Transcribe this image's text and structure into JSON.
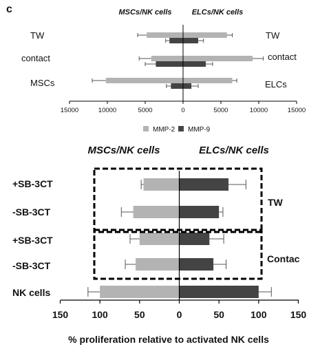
{
  "panel_letter": "c",
  "colors": {
    "light": "#b3b3b3",
    "dark": "#444444",
    "axis": "#000000",
    "error": "#555555"
  },
  "chart_data": [
    {
      "type": "bar",
      "orientation": "horizontal-bilateral",
      "left_heading": "MSCs/NK cells",
      "right_heading": "ELCs/NK cells",
      "categories": [
        {
          "left": "TW",
          "right": "TW"
        },
        {
          "left": "contact",
          "right": "contact"
        },
        {
          "left": "MSCs",
          "right": "ELCs"
        }
      ],
      "series": [
        {
          "name": "MMP-2",
          "left_values": [
            4800,
            4200,
            10200
          ],
          "left_errors": [
            1200,
            1600,
            1800
          ],
          "right_values": [
            5800,
            9200,
            6500
          ],
          "right_errors": [
            700,
            1400,
            600
          ]
        },
        {
          "name": "MMP-9",
          "left_values": [
            1800,
            3600,
            1600
          ],
          "left_errors": [
            500,
            1400,
            600
          ],
          "right_values": [
            2000,
            3000,
            1100
          ],
          "right_errors": [
            700,
            900,
            900
          ]
        }
      ],
      "xlim": [
        -15000,
        15000
      ],
      "xticks": [
        -15000,
        -10000,
        -5000,
        0,
        5000,
        10000,
        15000
      ],
      "xtick_labels": [
        "15000",
        "10000",
        "5000",
        "0",
        "5000",
        "10000",
        "15000"
      ],
      "legend": [
        "MMP-2",
        "MMP-9"
      ],
      "legend_position": "bottom-center"
    },
    {
      "type": "bar",
      "orientation": "horizontal-bilateral",
      "left_heading": "MSCs/NK cells",
      "right_heading": "ELCs/NK cells",
      "categories": [
        "+SB-3CT",
        "-SB-3CT",
        "+SB-3CT",
        "-SB-3CT",
        "NK cells"
      ],
      "left_values": [
        45,
        58,
        50,
        55,
        100
      ],
      "left_errors": [
        3,
        15,
        12,
        13,
        15
      ],
      "right_values": [
        62,
        50,
        38,
        43,
        100
      ],
      "right_errors": [
        22,
        5,
        18,
        16,
        16
      ],
      "groups": [
        {
          "label": "TW",
          "rows": [
            0,
            1
          ]
        },
        {
          "label": "Contac",
          "rows": [
            2,
            3
          ]
        }
      ],
      "xlim": [
        -150,
        150
      ],
      "xticks": [
        -150,
        -100,
        -50,
        0,
        50,
        100,
        150
      ],
      "xtick_labels": [
        "150",
        "100",
        "50",
        "0",
        "50",
        "100",
        "150"
      ],
      "xlabel": "% proliferation relative to activated NK cells"
    }
  ]
}
